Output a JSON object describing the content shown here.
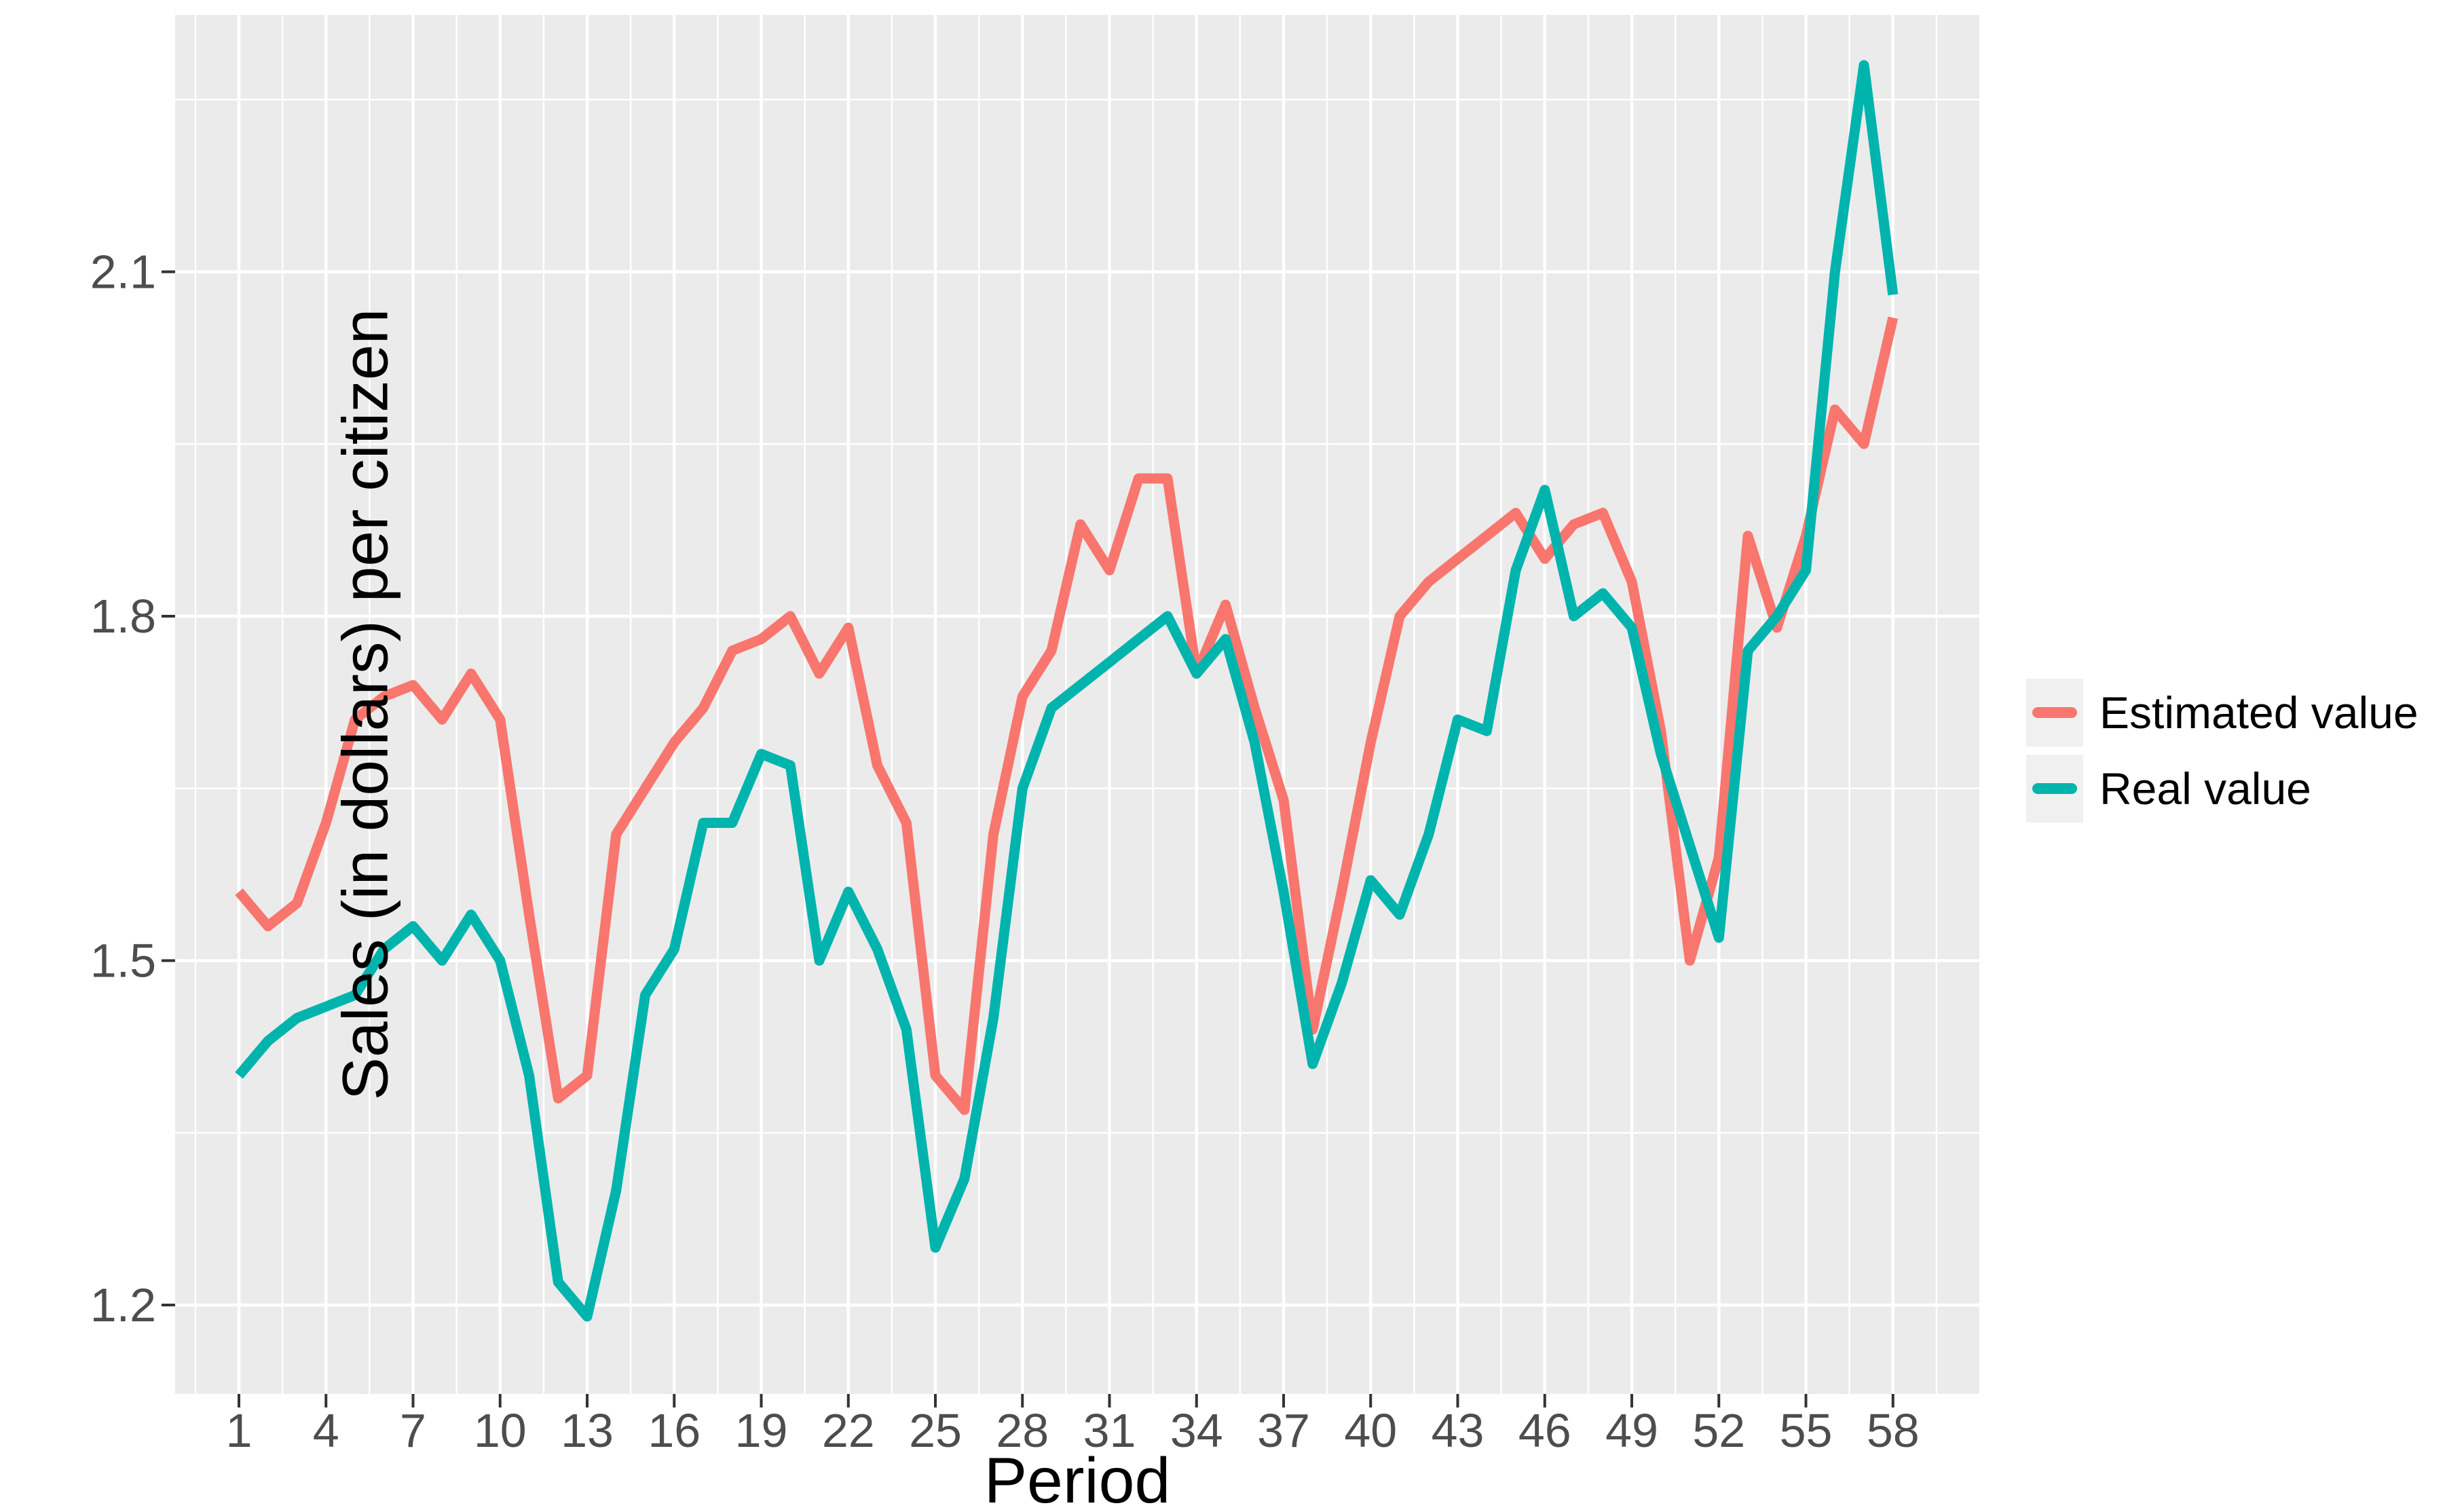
{
  "chart_data": {
    "type": "line",
    "title": "",
    "xlabel": "Period",
    "ylabel": "Sales (in dollars) per citizen",
    "x_tick_labels": [
      1,
      4,
      7,
      10,
      13,
      16,
      19,
      22,
      25,
      28,
      31,
      34,
      37,
      40,
      43,
      46,
      49,
      52,
      55,
      58
    ],
    "x_minor_breaks": [
      -0.5,
      2.5,
      5.5,
      8.5,
      11.5,
      14.5,
      17.5,
      20.5,
      23.5,
      26.5,
      29.5,
      32.5,
      35.5,
      38.5,
      41.5,
      44.5,
      47.5,
      50.5,
      53.5,
      56.5,
      59.5
    ],
    "y_tick_labels": [
      "1.2",
      "1.5",
      "1.8",
      "2.1"
    ],
    "y_tick_values": [
      1.2,
      1.5,
      1.8,
      2.1
    ],
    "y_minor_breaks": [
      1.35,
      1.65,
      1.95,
      2.25
    ],
    "xlim": [
      -1.2,
      61.0
    ],
    "ylim": [
      1.12,
      2.325
    ],
    "grid": true,
    "panel_background": "#EBEBEB",
    "gridline_color": "#FFFFFF",
    "tick_mark_color": "#333333",
    "tick_label_color": "#4D4D4D",
    "legend_position": "right",
    "legend_key_fill": "#F0F0F0",
    "x": [
      1,
      2,
      3,
      4,
      5,
      6,
      7,
      8,
      9,
      10,
      11,
      12,
      13,
      14,
      15,
      16,
      17,
      18,
      19,
      20,
      21,
      22,
      23,
      24,
      25,
      26,
      27,
      28,
      29,
      30,
      31,
      32,
      33,
      34,
      35,
      36,
      37,
      38,
      39,
      40,
      41,
      42,
      43,
      44,
      45,
      46,
      47,
      48,
      49,
      50,
      51,
      52,
      53,
      54,
      55,
      56,
      57,
      58
    ],
    "series": [
      {
        "name": "Estimated value",
        "color": "#F8766D",
        "values": [
          1.56,
          1.53,
          1.55,
          1.62,
          1.71,
          1.73,
          1.74,
          1.71,
          1.75,
          1.71,
          1.54,
          1.38,
          1.4,
          1.61,
          1.65,
          1.69,
          1.72,
          1.77,
          1.78,
          1.8,
          1.75,
          1.79,
          1.67,
          1.62,
          1.4,
          1.37,
          1.61,
          1.73,
          1.77,
          1.88,
          1.84,
          1.92,
          1.92,
          1.75,
          1.81,
          1.72,
          1.64,
          1.44,
          1.56,
          1.69,
          1.8,
          1.83,
          1.85,
          1.87,
          1.89,
          1.85,
          1.88,
          1.89,
          1.83,
          1.7,
          1.5,
          1.59,
          1.87,
          1.79,
          1.87,
          1.98,
          1.95,
          2.06
        ]
      },
      {
        "name": "Real value",
        "color": "#00B4AE",
        "values": [
          1.4,
          1.43,
          1.45,
          1.46,
          1.47,
          1.51,
          1.53,
          1.5,
          1.54,
          1.5,
          1.4,
          1.22,
          1.19,
          1.3,
          1.47,
          1.51,
          1.62,
          1.62,
          1.68,
          1.67,
          1.5,
          1.56,
          1.51,
          1.44,
          1.25,
          1.31,
          1.45,
          1.65,
          1.72,
          1.74,
          1.76,
          1.78,
          1.8,
          1.75,
          1.78,
          1.69,
          1.56,
          1.41,
          1.48,
          1.57,
          1.54,
          1.61,
          1.71,
          1.7,
          1.84,
          1.91,
          1.8,
          1.82,
          1.79,
          1.68,
          1.6,
          1.52,
          1.77,
          1.8,
          1.84,
          2.1,
          2.28,
          2.08
        ]
      }
    ]
  }
}
